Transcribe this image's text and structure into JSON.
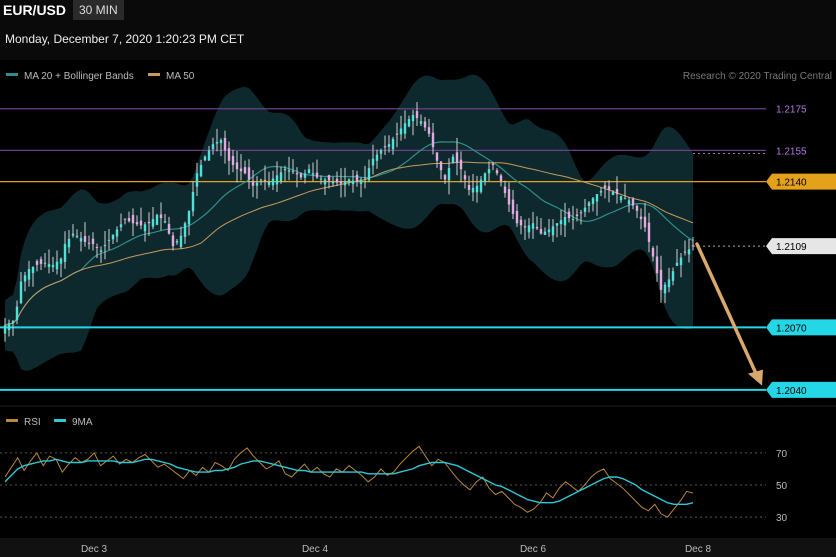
{
  "header": {
    "symbol": "EUR/USD",
    "interval": "30 MIN",
    "datetime": "Monday, December 7, 2020 1:20:23 PM CET"
  },
  "legend": {
    "ma20": "MA 20 + Bollinger Bands",
    "ma50": "MA 50",
    "rsi": "RSI",
    "rsi_ma": "9MA",
    "credit": "Research © 2020 Trading Central"
  },
  "colors": {
    "bg": "#000000",
    "bull": "#4fe0d8",
    "bear": "#e6a8e0",
    "ma20": "#2e8f8a",
    "ma50": "#c69a5a",
    "band": "#0f2e33",
    "support": "#25d7e6",
    "resistance_orange": "#e3a11c",
    "resistance_purple": "#6c3f8a",
    "arrow": "#d9a86c",
    "rsi_line": "#b8873f",
    "rsi_ma": "#2ec9d6"
  },
  "chart_data": {
    "type": "candlestick",
    "title": "EUR/USD",
    "x_ticks": [
      "Dec 3",
      "Dec 4",
      "Dec 6",
      "Dec 8"
    ],
    "ylim": [
      1.2038,
      1.2184
    ],
    "levels": [
      {
        "value": 1.2175,
        "label": "1.2175",
        "style": "resistance_purple"
      },
      {
        "value": 1.2155,
        "label": "1.2155",
        "style": "resistance_purple"
      },
      {
        "value": 1.214,
        "label": "1.2140",
        "style": "resistance_orange"
      },
      {
        "value": 1.207,
        "label": "1.2070",
        "style": "support"
      },
      {
        "value": 1.204,
        "label": "1.2040",
        "style": "support"
      }
    ],
    "last_price": {
      "value": 1.2109,
      "label": "1.2109"
    },
    "forecast_arrow": {
      "from": 1.211,
      "to": 1.2042
    },
    "close_path": [
      [
        0,
        1.2071
      ],
      [
        2,
        1.2073
      ],
      [
        3,
        1.208
      ],
      [
        4,
        1.2092
      ],
      [
        6,
        1.2098
      ],
      [
        8,
        1.21
      ],
      [
        10,
        1.2101
      ],
      [
        12,
        1.21
      ],
      [
        14,
        1.2103
      ],
      [
        15,
        1.211
      ],
      [
        17,
        1.2115
      ],
      [
        19,
        1.2113
      ],
      [
        20,
        1.2111
      ],
      [
        22,
        1.211
      ],
      [
        24,
        1.2107
      ],
      [
        26,
        1.2112
      ],
      [
        28,
        1.2117
      ],
      [
        30,
        1.2122
      ],
      [
        32,
        1.212
      ],
      [
        34,
        1.2119
      ],
      [
        36,
        1.212
      ],
      [
        38,
        1.2124
      ],
      [
        40,
        1.2121
      ],
      [
        42,
        1.2109
      ],
      [
        44,
        1.2114
      ],
      [
        46,
        1.2126
      ],
      [
        48,
        1.2144
      ],
      [
        50,
        1.2152
      ],
      [
        52,
        1.2158
      ],
      [
        54,
        1.216
      ],
      [
        56,
        1.215
      ],
      [
        58,
        1.2146
      ],
      [
        60,
        1.2144
      ],
      [
        62,
        1.2138
      ],
      [
        64,
        1.2141
      ],
      [
        66,
        1.214
      ],
      [
        68,
        1.2143
      ],
      [
        70,
        1.2146
      ],
      [
        72,
        1.2145
      ],
      [
        74,
        1.2142
      ],
      [
        76,
        1.2146
      ],
      [
        78,
        1.2142
      ],
      [
        80,
        1.2141
      ],
      [
        82,
        1.214
      ],
      [
        84,
        1.2139
      ],
      [
        86,
        1.2141
      ],
      [
        88,
        1.214
      ],
      [
        90,
        1.2142
      ],
      [
        92,
        1.2151
      ],
      [
        94,
        1.2155
      ],
      [
        96,
        1.2158
      ],
      [
        98,
        1.2163
      ],
      [
        100,
        1.2168
      ],
      [
        102,
        1.2172
      ],
      [
        104,
        1.2169
      ],
      [
        106,
        1.2163
      ],
      [
        108,
        1.215
      ],
      [
        110,
        1.2141
      ],
      [
        112,
        1.2152
      ],
      [
        114,
        1.2146
      ],
      [
        116,
        1.2136
      ],
      [
        118,
        1.2138
      ],
      [
        120,
        1.2144
      ],
      [
        122,
        1.2148
      ],
      [
        124,
        1.214
      ],
      [
        126,
        1.2129
      ],
      [
        128,
        1.212
      ],
      [
        130,
        1.2118
      ],
      [
        132,
        1.212
      ],
      [
        134,
        1.2115
      ],
      [
        136,
        1.2117
      ],
      [
        138,
        1.212
      ],
      [
        140,
        1.2123
      ],
      [
        142,
        1.2122
      ],
      [
        144,
        1.2125
      ],
      [
        146,
        1.213
      ],
      [
        148,
        1.2134
      ],
      [
        150,
        1.2137
      ],
      [
        152,
        1.2135
      ],
      [
        154,
        1.2133
      ],
      [
        156,
        1.2131
      ],
      [
        158,
        1.2126
      ],
      [
        160,
        1.2118
      ],
      [
        162,
        1.2104
      ],
      [
        164,
        1.2088
      ],
      [
        166,
        1.2093
      ],
      [
        168,
        1.2101
      ],
      [
        170,
        1.2106
      ],
      [
        172,
        1.2109
      ]
    ],
    "rsi": {
      "levels": [
        70,
        50,
        30
      ],
      "ylim": [
        22,
        78
      ],
      "x_end": 172,
      "values": [
        55,
        61,
        67,
        59,
        65,
        70,
        62,
        68,
        66,
        58,
        63,
        67,
        64,
        66,
        70,
        62,
        65,
        68,
        63,
        66,
        64,
        67,
        69,
        65,
        61,
        63,
        60,
        57,
        54,
        59,
        56,
        61,
        58,
        64,
        62,
        59,
        66,
        70,
        73,
        68,
        64,
        60,
        62,
        65,
        57,
        55,
        59,
        63,
        58,
        61,
        57,
        55,
        60,
        58,
        62,
        59,
        56,
        52,
        55,
        60,
        56,
        58,
        63,
        67,
        71,
        74,
        68,
        62,
        66,
        64,
        59,
        54,
        50,
        47,
        52,
        55,
        48,
        44,
        46,
        42,
        38,
        36,
        33,
        35,
        39,
        45,
        42,
        48,
        52,
        49,
        46,
        50,
        55,
        58,
        60,
        54,
        51,
        48,
        44,
        40,
        36,
        34,
        38,
        32,
        30,
        35,
        40,
        46,
        45
      ],
      "ma_values": [
        52,
        56,
        60,
        62,
        63,
        64,
        65,
        65,
        66,
        65,
        64,
        64,
        64,
        65,
        65,
        65,
        65,
        65,
        64,
        64,
        64,
        65,
        66,
        66,
        65,
        64,
        63,
        61,
        60,
        59,
        58,
        58,
        58,
        59,
        59,
        60,
        61,
        63,
        64,
        65,
        65,
        64,
        63,
        62,
        61,
        60,
        59,
        59,
        58,
        58,
        58,
        58,
        58,
        58,
        58,
        58,
        58,
        57,
        57,
        57,
        57,
        57,
        58,
        59,
        60,
        62,
        63,
        64,
        64,
        64,
        63,
        62,
        60,
        58,
        56,
        54,
        52,
        50,
        49,
        47,
        45,
        43,
        41,
        40,
        39,
        39,
        39,
        40,
        42,
        44,
        46,
        48,
        50,
        52,
        54,
        55,
        55,
        54,
        52,
        50,
        47,
        45,
        43,
        41,
        39,
        38,
        38,
        38,
        39
      ]
    }
  }
}
